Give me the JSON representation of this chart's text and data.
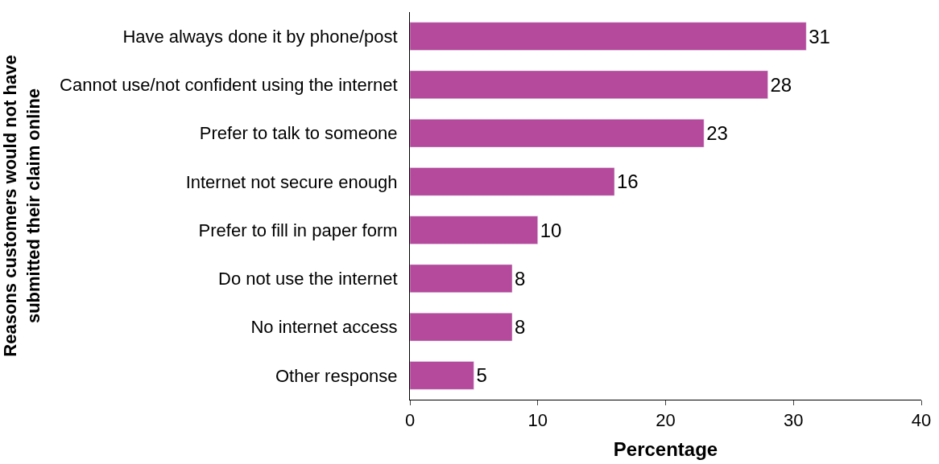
{
  "chart_data": {
    "type": "bar",
    "orientation": "horizontal",
    "xlabel": "Percentage",
    "ylabel": "Reasons customers would not have submitted their claim online",
    "categories": [
      "Have always done it by phone/post",
      "Cannot use/not confident using the internet",
      "Prefer to talk to someone",
      "Internet not secure enough",
      "Prefer to fill in paper form",
      "Do not use the internet",
      "No internet access",
      "Other response"
    ],
    "values": [
      31,
      28,
      23,
      16,
      10,
      8,
      8,
      5
    ],
    "color": "#b5499b",
    "data_labels": true,
    "xlim": [
      0,
      40
    ],
    "xticks": [
      0,
      10,
      20,
      30,
      40
    ]
  }
}
